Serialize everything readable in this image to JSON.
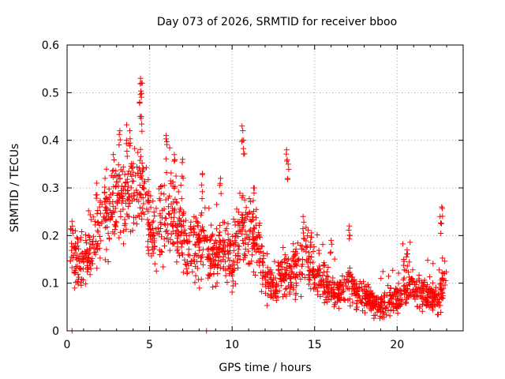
{
  "chart_data": {
    "type": "scatter",
    "title": "Day 073 of 2026, SRMTID for receiver bboo",
    "xlabel": "GPS time / hours",
    "ylabel": "SRMTID / TECUs",
    "xlim": [
      0,
      24
    ],
    "ylim": [
      0,
      0.6
    ],
    "xticks": [
      "0",
      "5",
      "10",
      "15",
      "20"
    ],
    "yticks": [
      "0",
      "0.1",
      "0.2",
      "0.3",
      "0.4",
      "0.5",
      "0.6"
    ],
    "grid": true,
    "marker": "plus",
    "series_color": "#ff0000",
    "trend": [
      [
        0.0,
        0.18
      ],
      [
        0.5,
        0.15
      ],
      [
        1.0,
        0.14
      ],
      [
        1.5,
        0.17
      ],
      [
        2.0,
        0.21
      ],
      [
        2.5,
        0.24
      ],
      [
        3.0,
        0.27
      ],
      [
        3.5,
        0.28
      ],
      [
        4.0,
        0.3
      ],
      [
        4.5,
        0.32
      ],
      [
        5.0,
        0.22
      ],
      [
        5.5,
        0.2
      ],
      [
        6.0,
        0.24
      ],
      [
        6.5,
        0.25
      ],
      [
        7.0,
        0.2
      ],
      [
        7.5,
        0.18
      ],
      [
        8.0,
        0.19
      ],
      [
        8.5,
        0.17
      ],
      [
        9.0,
        0.16
      ],
      [
        9.5,
        0.18
      ],
      [
        10.0,
        0.15
      ],
      [
        10.5,
        0.22
      ],
      [
        11.0,
        0.22
      ],
      [
        11.5,
        0.18
      ],
      [
        12.0,
        0.12
      ],
      [
        12.5,
        0.09
      ],
      [
        13.0,
        0.11
      ],
      [
        13.5,
        0.12
      ],
      [
        14.0,
        0.14
      ],
      [
        14.5,
        0.16
      ],
      [
        15.0,
        0.12
      ],
      [
        15.5,
        0.11
      ],
      [
        16.0,
        0.09
      ],
      [
        16.5,
        0.08
      ],
      [
        17.0,
        0.1
      ],
      [
        17.5,
        0.08
      ],
      [
        18.0,
        0.07
      ],
      [
        18.5,
        0.06
      ],
      [
        19.0,
        0.05
      ],
      [
        19.5,
        0.06
      ],
      [
        20.0,
        0.07
      ],
      [
        20.5,
        0.09
      ],
      [
        21.0,
        0.09
      ],
      [
        21.5,
        0.08
      ],
      [
        22.0,
        0.07
      ],
      [
        22.5,
        0.06
      ],
      [
        22.8,
        0.1
      ]
    ],
    "spikes": [
      [
        4.45,
        0.53
      ],
      [
        4.5,
        0.52
      ],
      [
        4.4,
        0.48
      ],
      [
        4.5,
        0.45
      ],
      [
        3.8,
        0.42
      ],
      [
        3.2,
        0.42
      ],
      [
        3.6,
        0.4
      ],
      [
        6.0,
        0.41
      ],
      [
        10.6,
        0.43
      ],
      [
        10.7,
        0.4
      ],
      [
        13.3,
        0.38
      ],
      [
        13.4,
        0.35
      ],
      [
        6.5,
        0.37
      ],
      [
        7.0,
        0.36
      ],
      [
        9.3,
        0.32
      ],
      [
        8.2,
        0.33
      ],
      [
        11.3,
        0.3
      ],
      [
        22.7,
        0.26
      ],
      [
        22.6,
        0.24
      ],
      [
        17.1,
        0.22
      ],
      [
        14.3,
        0.24
      ],
      [
        16.0,
        0.19
      ],
      [
        20.6,
        0.17
      ],
      [
        20.4,
        0.15
      ],
      [
        1.8,
        0.31
      ],
      [
        2.3,
        0.32
      ],
      [
        2.8,
        0.37
      ],
      [
        0.3,
        0.23
      ],
      [
        0.5,
        0.21
      ]
    ],
    "outliers": [
      [
        0.3,
        0.0
      ],
      [
        8.45,
        0.0
      ]
    ],
    "time_range": [
      0.2,
      23.0
    ]
  }
}
